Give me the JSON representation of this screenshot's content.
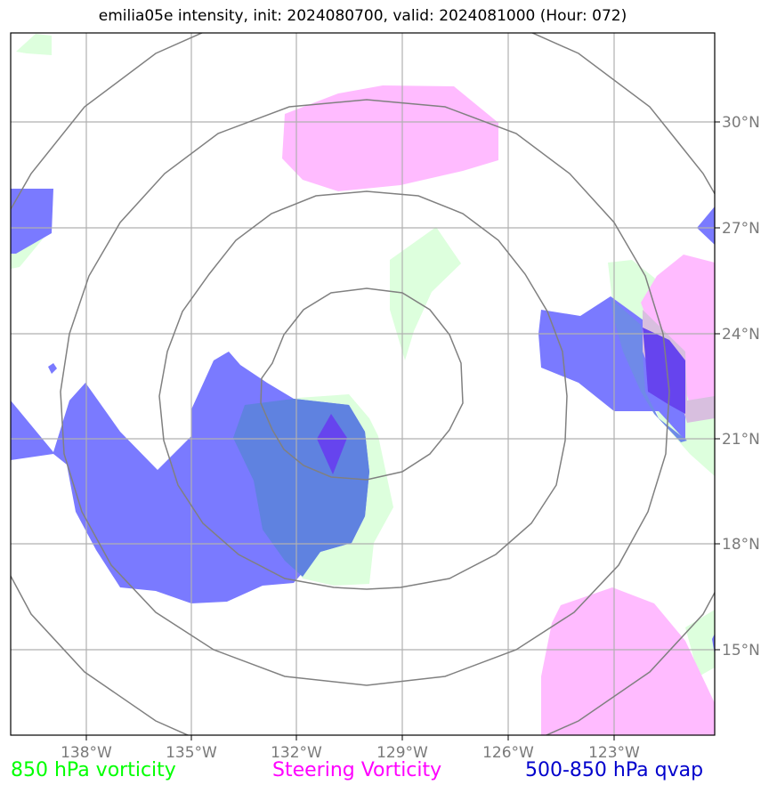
{
  "title": "emilia05e intensity, init: 2024080700, valid: 2024081000 (Hour: 072)",
  "lon_ticks": [
    "138°W",
    "135°W",
    "132°W",
    "129°W",
    "126°W",
    "123°W"
  ],
  "lat_ticks": [
    "30°N",
    "27°N",
    "24°N",
    "21°N",
    "18°N",
    "15°N"
  ],
  "legend": [
    {
      "label": "850 hPa vorticity",
      "color": "#00ff00"
    },
    {
      "label": "Steering Vorticity",
      "color": "#ff00ff"
    },
    {
      "label": "500-850 hPa qvap",
      "color": "#0000cc"
    }
  ],
  "colors": {
    "vorticity_850": "#ddffdd",
    "steering_vorticity": "#ffbbff",
    "qvap": "#7a7aff",
    "qvap_dark": "#6644ee",
    "range_rings": "#808080",
    "gridlines": "#b0b0b0"
  }
}
